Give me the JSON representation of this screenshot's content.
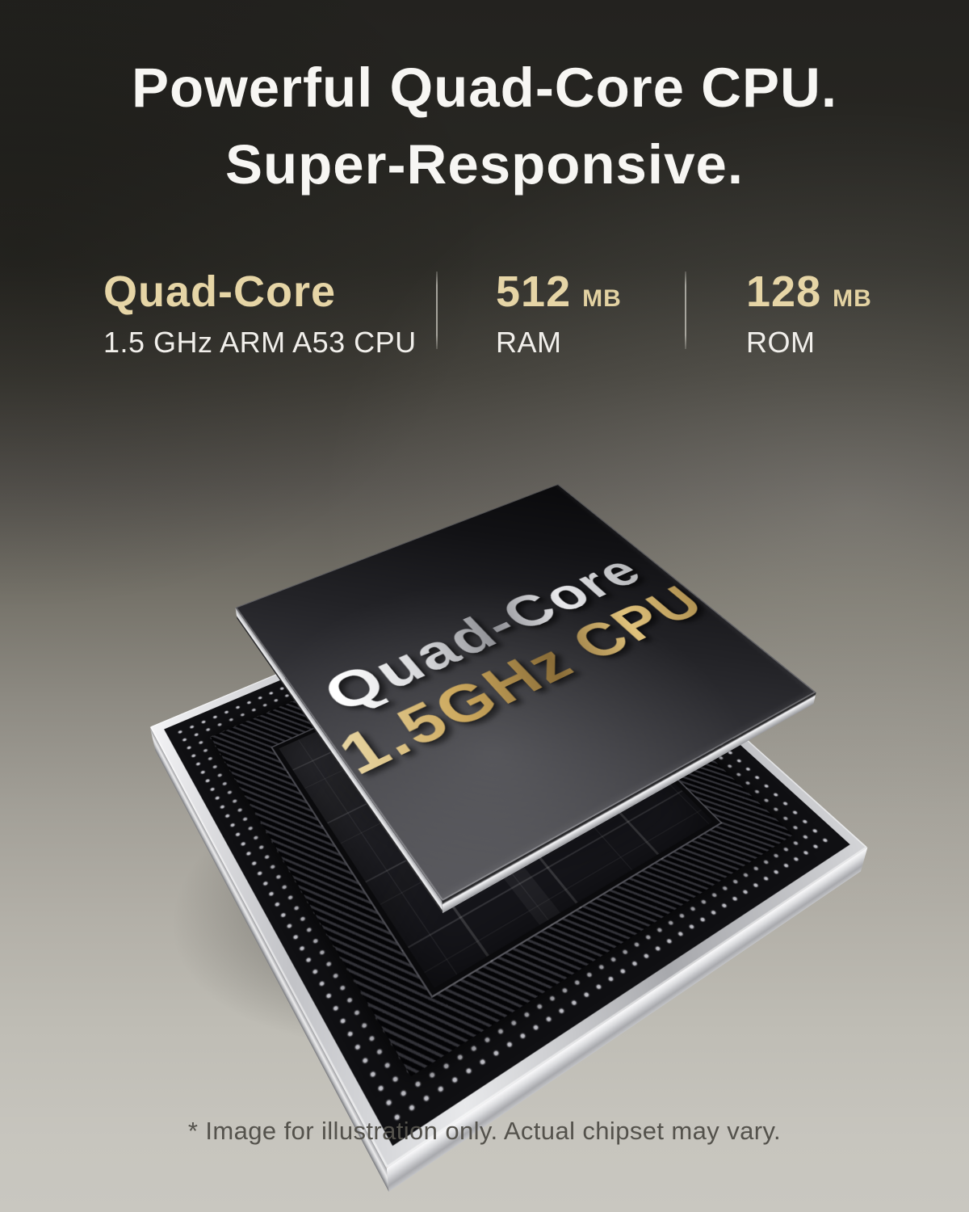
{
  "header": {
    "title_line1": "Powerful Quad-Core CPU.",
    "title_line2": "Super-Responsive."
  },
  "specs": {
    "items": [
      {
        "value": "Quad-Core",
        "unit": "",
        "label": "1.5 GHz ARM A53 CPU"
      },
      {
        "value": "512",
        "unit": "MB",
        "label": "RAM"
      },
      {
        "value": "128",
        "unit": "MB",
        "label": "ROM"
      }
    ]
  },
  "chip": {
    "engraving_line1": "Quad-Core",
    "engraving_line2": "1.5GHz CPU"
  },
  "footer": {
    "disclaimer": "* Image for illustration only. Actual chipset may vary."
  },
  "colors": {
    "accent_gold": "#e6d5a6",
    "title_white": "#f7f6f3",
    "background_top": "#24231f",
    "background_bottom": "#c9c7c0",
    "divider_gray": "#8f8d86",
    "engraving_silver": "#d7d8db",
    "engraving_gold": "#c3a25c",
    "board_silver": "#d4d5d8",
    "pcb_black": "#101013",
    "disclaimer_gray": "#54524c"
  }
}
